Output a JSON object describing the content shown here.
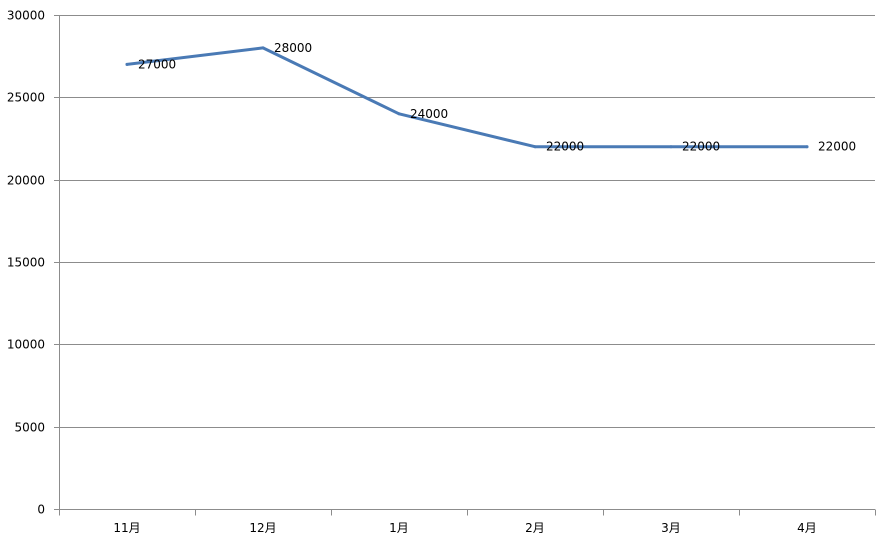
{
  "chart_data": {
    "type": "line",
    "title": "",
    "xlabel": "",
    "ylabel": "",
    "categories": [
      "11月",
      "12月",
      "1月",
      "2月",
      "3月",
      "4月"
    ],
    "series": [
      {
        "values": [
          27000,
          28000,
          24000,
          22000,
          22000,
          22000
        ],
        "color": "#4a7ab5"
      }
    ],
    "ylim": [
      0,
      30000
    ],
    "yticks": [
      0,
      5000,
      10000,
      15000,
      20000,
      25000,
      30000
    ],
    "ytick_labels": [
      "0",
      "5000",
      "10000",
      "15000",
      "20000",
      "25000",
      "30000"
    ],
    "data_labels": [
      "27000",
      "28000",
      "24000",
      "22000",
      "22000",
      "22000"
    ],
    "grid": true,
    "legend": "none",
    "gridline_color": "#8c8c8c",
    "axis_color": "#8c8c8c"
  }
}
